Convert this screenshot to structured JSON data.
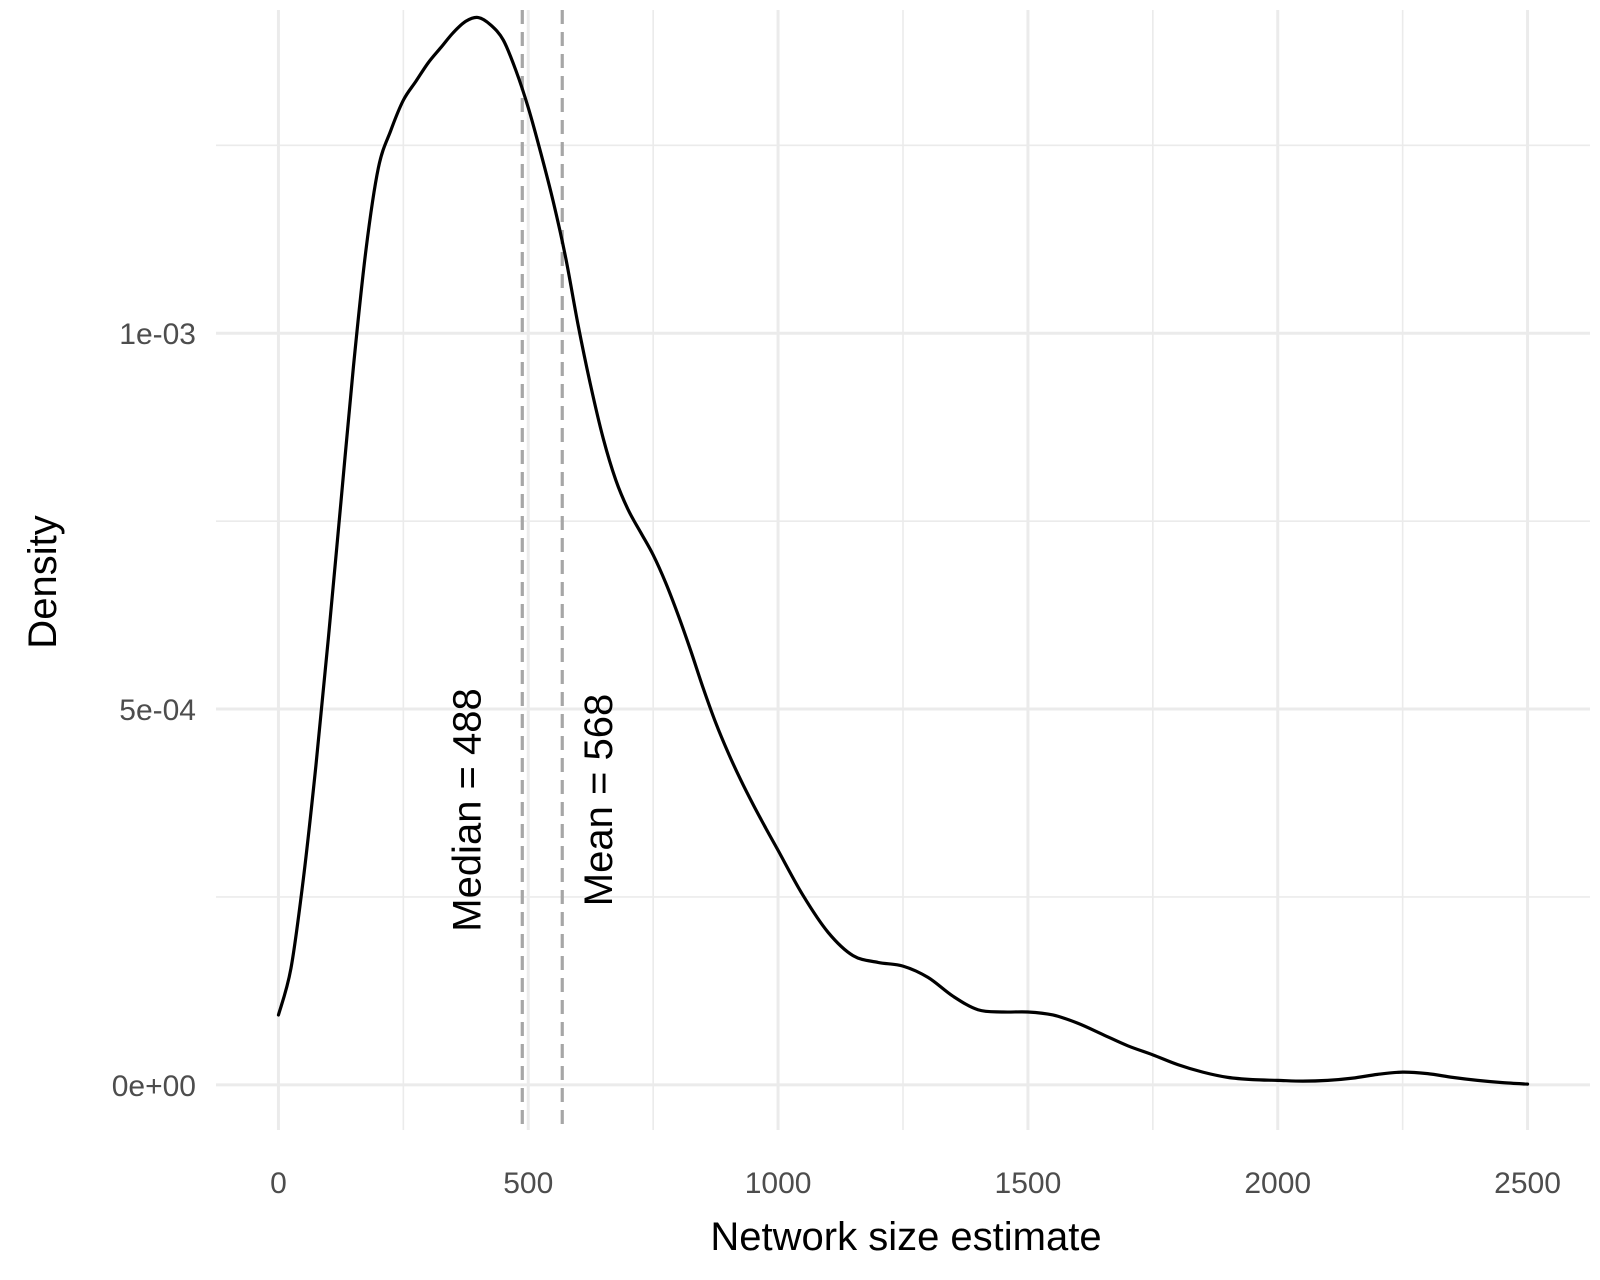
{
  "chart_data": {
    "type": "line",
    "title": "",
    "xlabel": "Network size estimate",
    "ylabel": "Density",
    "xlim": [
      -125,
      2625
    ],
    "ylim": [
      -6e-05,
      0.00143
    ],
    "x_ticks": [
      0,
      500,
      1000,
      1500,
      2000,
      2500
    ],
    "x_tick_labels": [
      "0",
      "500",
      "1000",
      "1500",
      "2000",
      "2500"
    ],
    "x_minor_ticks": [
      250,
      750,
      1250,
      1750,
      2250
    ],
    "y_ticks": [
      0,
      0.0005,
      0.001
    ],
    "y_tick_labels": [
      "0e+00",
      "5e-04",
      "1e-03"
    ],
    "y_minor_ticks": [
      0.00025,
      0.00075,
      0.00125
    ],
    "grid": true,
    "legend": "none",
    "line_color": "#000000",
    "reference_line_color": "#a6a6a6",
    "series": [
      {
        "x": [
          0,
          25,
          50,
          75,
          100,
          125,
          150,
          175,
          200,
          225,
          250,
          275,
          300,
          325,
          350,
          375,
          400,
          425,
          450,
          475,
          500,
          525,
          550,
          575,
          600,
          625,
          650,
          675,
          700,
          725,
          750,
          775,
          800,
          825,
          850,
          875,
          900,
          925,
          950,
          975,
          1000,
          1050,
          1100,
          1150,
          1200,
          1250,
          1300,
          1350,
          1400,
          1450,
          1500,
          1550,
          1600,
          1650,
          1700,
          1750,
          1800,
          1850,
          1900,
          1950,
          2000,
          2050,
          2100,
          2150,
          2200,
          2250,
          2300,
          2350,
          2400,
          2450,
          2500
        ],
        "y": [
          9.3e-05,
          0.000155,
          0.000275,
          0.000425,
          0.000595,
          0.000775,
          0.000955,
          0.00111,
          0.00122,
          0.00127,
          0.00131,
          0.001335,
          0.00136,
          0.00138,
          0.0014,
          0.001415,
          0.00142,
          0.00141,
          0.00139,
          0.00135,
          0.0013,
          0.00124,
          0.001175,
          0.0011,
          0.00101,
          0.00093,
          0.00086,
          0.000805,
          0.000765,
          0.000735,
          0.000705,
          0.000668,
          0.000625,
          0.000578,
          0.000528,
          0.000482,
          0.000442,
          0.000406,
          0.000373,
          0.000342,
          0.000312,
          0.000252,
          0.000203,
          0.000172,
          0.000163,
          0.000158,
          0.000143,
          0.000118,
          0.0001,
          9.7e-05,
          9.7e-05,
          9.3e-05,
          8.2e-05,
          6.7e-05,
          5.2e-05,
          4e-05,
          2.7e-05,
          1.7e-05,
          1e-05,
          7e-06,
          6e-06,
          5e-06,
          6e-06,
          9e-06,
          1.4e-05,
          1.7e-05,
          1.5e-05,
          1e-05,
          6e-06,
          3e-06,
          1e-06
        ]
      }
    ],
    "reference_lines": [
      {
        "x": 488,
        "label": "Median = 488"
      },
      {
        "x": 568,
        "label": "Mean = 568"
      }
    ]
  }
}
